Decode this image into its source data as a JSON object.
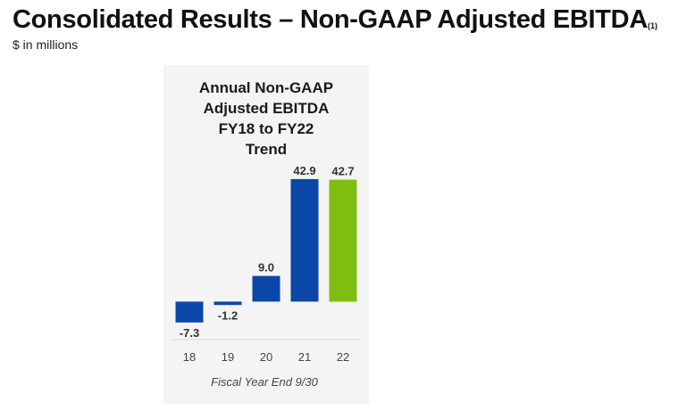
{
  "header": {
    "title": "Consolidated Results – Non-GAAP Adjusted EBITDA",
    "title_footnote": "(1)",
    "subtitle": "$ in millions"
  },
  "chart_data": {
    "type": "bar",
    "title_lines": [
      "Annual Non-GAAP",
      "Adjusted EBITDA",
      "FY18 to FY22",
      "Trend"
    ],
    "categories": [
      "18",
      "19",
      "20",
      "21",
      "22"
    ],
    "values": [
      -7.3,
      -1.2,
      9.0,
      42.9,
      42.7
    ],
    "value_labels": [
      "-7.3",
      "-1.2",
      "9.0",
      "42.9",
      "42.7"
    ],
    "xlabel": "Fiscal Year End 9/30",
    "ylabel": "",
    "ylim": [
      -8.6,
      46
    ],
    "grid": false,
    "legend": "none",
    "colors": {
      "default_bar": "#0a47a8",
      "highlight_bar": "#7fbe0f",
      "highlight_category": "22",
      "axis_line": "#d9d9d9"
    }
  }
}
